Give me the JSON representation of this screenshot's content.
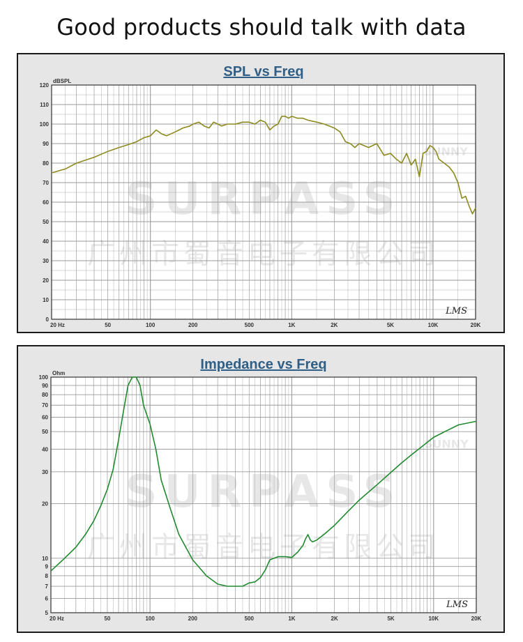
{
  "heading": "Good products should talk with data",
  "watermark": {
    "brand": "SURPASS",
    "company": "广州市蜀音电子有限公司",
    "tag": "SUNNY"
  },
  "colors": {
    "panel_bg": "#e6e6e6",
    "plot_bg": "#ffffff",
    "grid": "#9a9a9a",
    "title": "#2f5f86",
    "spl_curve": "#8c8a1e",
    "imp_curve": "#1f8a2e"
  },
  "chart_data": [
    {
      "type": "line",
      "title": "SPL vs Freq",
      "ylabel": "dBSPL",
      "xscale": "log",
      "xlim": [
        20,
        20000
      ],
      "ylim": [
        0,
        120
      ],
      "grid": true,
      "logo": "LMS",
      "x_tick_labels": [
        {
          "v": 20,
          "t": "20  Hz"
        },
        {
          "v": 50,
          "t": "50"
        },
        {
          "v": 100,
          "t": "100"
        },
        {
          "v": 200,
          "t": "200"
        },
        {
          "v": 500,
          "t": "500"
        },
        {
          "v": 1000,
          "t": "1K"
        },
        {
          "v": 2000,
          "t": "2K"
        },
        {
          "v": 5000,
          "t": "5K"
        },
        {
          "v": 10000,
          "t": "10K"
        },
        {
          "v": 20000,
          "t": "20K"
        }
      ],
      "y_ticks": [
        0,
        10,
        20,
        30,
        40,
        50,
        60,
        70,
        80,
        90,
        100,
        110,
        120
      ],
      "series": [
        {
          "x": [
            20,
            25,
            30,
            40,
            50,
            60,
            70,
            80,
            90,
            100,
            110,
            120,
            130,
            150,
            170,
            190,
            200,
            220,
            240,
            260,
            280,
            300,
            320,
            350,
            400,
            450,
            500,
            550,
            600,
            650,
            700,
            750,
            800,
            850,
            900,
            950,
            1000,
            1100,
            1200,
            1300,
            1500,
            1700,
            2000,
            2200,
            2400,
            2600,
            2800,
            3000,
            3500,
            4000,
            4500,
            5000,
            5500,
            6000,
            6500,
            7000,
            7500,
            8000,
            8500,
            9000,
            9500,
            10000,
            10500,
            11000,
            12000,
            13000,
            14000,
            15000,
            16000,
            17000,
            18000,
            19000,
            20000
          ],
          "y": [
            75,
            77,
            80,
            83,
            86,
            88,
            89.5,
            91,
            93,
            94,
            97,
            95,
            94,
            96,
            98,
            99,
            100,
            101,
            99,
            98,
            101,
            100,
            99,
            100,
            100,
            101,
            101,
            100,
            102,
            101,
            97,
            99,
            100,
            104,
            104,
            103,
            104,
            103,
            103,
            102,
            101,
            100,
            98,
            96,
            91,
            90,
            88,
            90,
            88,
            90,
            84,
            85,
            82,
            80,
            85,
            79,
            82,
            73,
            85,
            86,
            89,
            88,
            86,
            82,
            80,
            78,
            75,
            70,
            62,
            63,
            58,
            54,
            57
          ]
        }
      ]
    },
    {
      "type": "line",
      "title": "Impedance vs Freq",
      "ylabel": "Ohm",
      "xscale": "log",
      "yscale": "log",
      "xlim": [
        20,
        20000
      ],
      "ylim": [
        5,
        100
      ],
      "grid": true,
      "logo": "LMS",
      "x_tick_labels": [
        {
          "v": 20,
          "t": "20  Hz"
        },
        {
          "v": 50,
          "t": "50"
        },
        {
          "v": 100,
          "t": "100"
        },
        {
          "v": 200,
          "t": "200"
        },
        {
          "v": 500,
          "t": "500"
        },
        {
          "v": 1000,
          "t": "1K"
        },
        {
          "v": 2000,
          "t": "2K"
        },
        {
          "v": 5000,
          "t": "5K"
        },
        {
          "v": 10000,
          "t": "10K"
        },
        {
          "v": 20000,
          "t": "20K"
        }
      ],
      "y_tick_labels": [
        5,
        6,
        7,
        8,
        9,
        10,
        20,
        30,
        40,
        50,
        60,
        70,
        80,
        90,
        100
      ],
      "series": [
        {
          "x": [
            20,
            25,
            30,
            35,
            40,
            45,
            50,
            55,
            60,
            65,
            70,
            75,
            80,
            85,
            90,
            100,
            110,
            120,
            140,
            160,
            200,
            250,
            300,
            350,
            400,
            450,
            500,
            550,
            600,
            650,
            700,
            800,
            900,
            1000,
            1100,
            1200,
            1250,
            1300,
            1350,
            1400,
            1500,
            1700,
            2000,
            2500,
            3000,
            4000,
            5000,
            6000,
            7000,
            8000,
            10000,
            12000,
            15000,
            20000
          ],
          "y": [
            8.5,
            10,
            11.5,
            13.5,
            16,
            19.5,
            24,
            31,
            45,
            65,
            90,
            100,
            100,
            90,
            70,
            55,
            40,
            27,
            18.5,
            13.5,
            9.8,
            8,
            7.2,
            7,
            7,
            7,
            7.3,
            7.4,
            7.8,
            8.6,
            9.8,
            10.2,
            10.2,
            10.1,
            10.8,
            11.8,
            12.8,
            13.5,
            12.6,
            12.3,
            12.6,
            13.6,
            15.2,
            18.2,
            21,
            25.5,
            29.8,
            33.8,
            37.3,
            40.5,
            46.5,
            50,
            54.5,
            57
          ]
        }
      ]
    }
  ]
}
